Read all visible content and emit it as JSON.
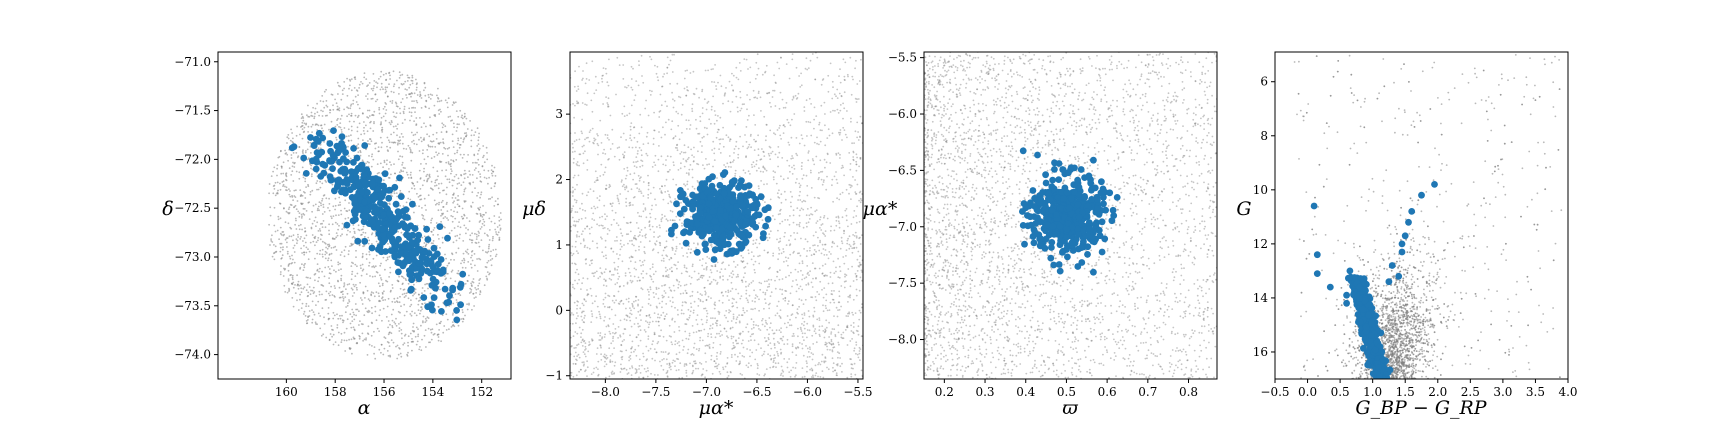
{
  "colors": {
    "background_points": "#808080",
    "member_points": "#1f77b4"
  },
  "chart_data": [
    {
      "type": "scatter",
      "xlabel": "α",
      "ylabel": "δ",
      "xlim": [
        162.8,
        150.8
      ],
      "ylim": [
        -74.25,
        -70.9
      ],
      "x_inverted": true,
      "xticks": [
        160,
        158,
        156,
        154,
        152
      ],
      "yticks": [
        -74.0,
        -73.5,
        -73.0,
        -72.5,
        -72.0,
        -71.5,
        -71.0
      ],
      "xtick_labels": [
        "160",
        "158",
        "156",
        "154",
        "152"
      ],
      "ytick_labels": [
        "−74.0",
        "−73.5",
        "−73.0",
        "−72.5",
        "−72.0",
        "−71.5",
        "−71.0"
      ],
      "grid": false,
      "series": [
        {
          "role": "field",
          "distribution": "ellipse",
          "center": [
            156.0,
            -72.57
          ],
          "radius": [
            4.8,
            1.48
          ],
          "point_count": 2600
        },
        {
          "role": "members",
          "distribution": "tilted-gaussian",
          "center": [
            156.0,
            -72.6
          ],
          "spread": [
            1.6,
            0.4
          ],
          "tilt_deg": -33,
          "point_count": 420,
          "range_x": [
            160.2,
            152.7
          ],
          "range_y": [
            -73.7,
            -71.7
          ]
        }
      ]
    },
    {
      "type": "scatter",
      "xlabel": "μα*",
      "ylabel": "μδ",
      "xlim": [
        -8.35,
        -5.45
      ],
      "ylim": [
        -1.05,
        3.95
      ],
      "xticks": [
        -8.0,
        -7.5,
        -7.0,
        -6.5,
        -6.0,
        -5.5
      ],
      "yticks": [
        -1,
        0,
        1,
        2,
        3
      ],
      "xtick_labels": [
        "−8.0",
        "−7.5",
        "−7.0",
        "−6.5",
        "−6.0",
        "−5.5"
      ],
      "ytick_labels": [
        "−1",
        "0",
        "1",
        "2",
        "3"
      ],
      "grid": false,
      "series": [
        {
          "role": "field",
          "distribution": "gradient-dense-top",
          "point_count": 3200
        },
        {
          "role": "members",
          "distribution": "gaussian",
          "center": [
            -6.85,
            1.45
          ],
          "spread": [
            0.18,
            0.24
          ],
          "point_count": 420,
          "range_x": [
            -7.6,
            -6.25
          ],
          "range_y": [
            0.75,
            2.15
          ]
        }
      ]
    },
    {
      "type": "scatter",
      "xlabel": "ϖ",
      "ylabel": "μα*",
      "xlim": [
        0.15,
        0.87
      ],
      "ylim": [
        -8.35,
        -5.45
      ],
      "xticks": [
        0.2,
        0.3,
        0.4,
        0.5,
        0.6,
        0.7,
        0.8
      ],
      "yticks": [
        -8.0,
        -7.5,
        -7.0,
        -6.5,
        -6.0,
        -5.5
      ],
      "xtick_labels": [
        "0.2",
        "0.3",
        "0.4",
        "0.5",
        "0.6",
        "0.7",
        "0.8"
      ],
      "ytick_labels": [
        "−8.0",
        "−7.5",
        "−7.0",
        "−6.5",
        "−6.0",
        "−5.5"
      ],
      "grid": false,
      "series": [
        {
          "role": "field",
          "distribution": "gradient-dense-left",
          "point_count": 3400
        },
        {
          "role": "members",
          "distribution": "gaussian",
          "center": [
            0.5,
            -6.9
          ],
          "spread": [
            0.045,
            0.18
          ],
          "point_count": 420,
          "range_x": [
            0.38,
            0.63
          ],
          "range_y": [
            -7.5,
            -6.3
          ]
        }
      ]
    },
    {
      "type": "scatter",
      "xlabel": "G_BP − G_RP",
      "ylabel": "G",
      "xlim": [
        -0.5,
        4.0
      ],
      "ylim": [
        17.0,
        4.9
      ],
      "y_inverted": true,
      "xticks": [
        -0.5,
        0.0,
        0.5,
        1.0,
        1.5,
        2.0,
        2.5,
        3.0,
        3.5,
        4.0
      ],
      "yticks": [
        6,
        8,
        10,
        12,
        14,
        16
      ],
      "xtick_labels": [
        "−0.5",
        "0.0",
        "0.5",
        "1.0",
        "1.5",
        "2.0",
        "2.5",
        "3.0",
        "3.5",
        "4.0"
      ],
      "ytick_labels": [
        "6",
        "8",
        "10",
        "12",
        "14",
        "16"
      ],
      "grid": false,
      "series": [
        {
          "role": "field",
          "distribution": "color-magnitude",
          "point_count": 3000
        },
        {
          "role": "members",
          "distribution": "main-sequence",
          "point_count": 380,
          "bright_members": [
            [
              0.1,
              10.6
            ],
            [
              0.15,
              12.4
            ],
            [
              0.15,
              13.1
            ],
            [
              0.35,
              13.6
            ],
            [
              0.6,
              13.9
            ],
            [
              0.6,
              14.2
            ],
            [
              0.65,
              13.0
            ],
            [
              0.8,
              13.6
            ],
            [
              1.25,
              13.4
            ],
            [
              1.4,
              13.2
            ],
            [
              1.3,
              12.8
            ],
            [
              1.45,
              12.3
            ],
            [
              1.45,
              12.0
            ],
            [
              1.5,
              11.7
            ],
            [
              1.55,
              11.2
            ],
            [
              1.6,
              10.8
            ],
            [
              1.75,
              10.2
            ],
            [
              1.95,
              9.8
            ]
          ]
        }
      ]
    }
  ]
}
